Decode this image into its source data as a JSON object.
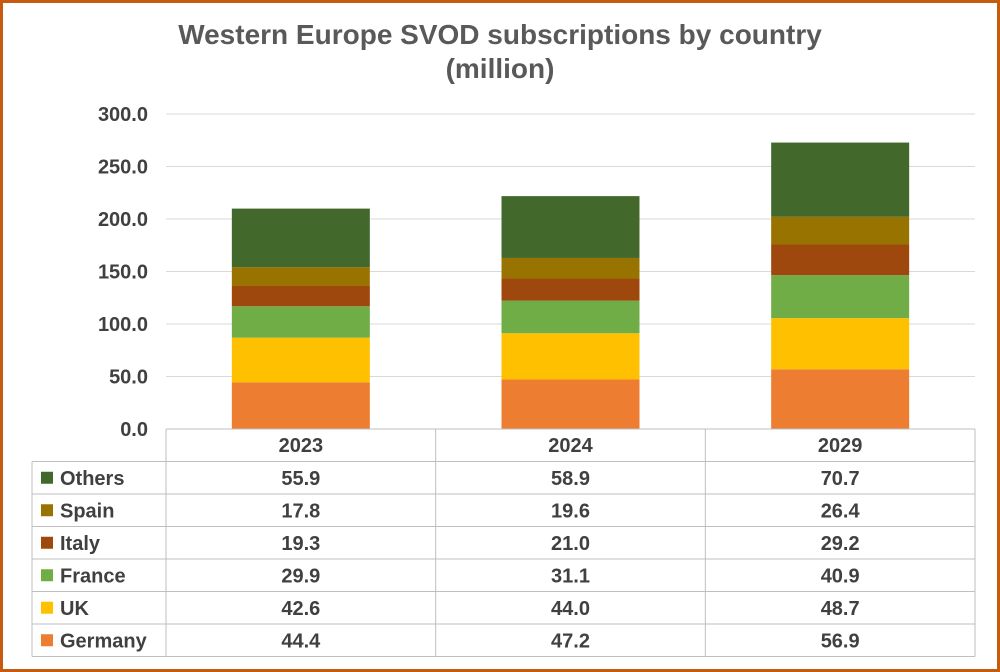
{
  "chart_data": {
    "type": "bar",
    "stacked": true,
    "title_line1": "Western Europe SVOD subscriptions by country",
    "title_line2": "(million)",
    "categories": [
      "2023",
      "2024",
      "2029"
    ],
    "ylim": [
      0,
      300
    ],
    "yticks": [
      "0.0",
      "50.0",
      "100.0",
      "150.0",
      "200.0",
      "250.0",
      "300.0"
    ],
    "grid": true,
    "legend": "data-table",
    "series": [
      {
        "name": "Germany",
        "color": "#ed7d31",
        "values": [
          44.4,
          47.2,
          56.9
        ],
        "labels": [
          "44.4",
          "47.2",
          "56.9"
        ]
      },
      {
        "name": "UK",
        "color": "#ffc000",
        "values": [
          42.6,
          44.0,
          48.7
        ],
        "labels": [
          "42.6",
          "44.0",
          "48.7"
        ]
      },
      {
        "name": "France",
        "color": "#70ad47",
        "values": [
          29.9,
          31.1,
          40.9
        ],
        "labels": [
          "29.9",
          "31.1",
          "40.9"
        ]
      },
      {
        "name": "Italy",
        "color": "#9e480e",
        "values": [
          19.3,
          21.0,
          29.2
        ],
        "labels": [
          "19.3",
          "21.0",
          "29.2"
        ]
      },
      {
        "name": "Spain",
        "color": "#997300",
        "values": [
          17.8,
          19.6,
          26.4
        ],
        "labels": [
          "17.8",
          "19.6",
          "26.4"
        ]
      },
      {
        "name": "Others",
        "color": "#43682b",
        "values": [
          55.9,
          58.9,
          70.7
        ],
        "labels": [
          "55.9",
          "58.9",
          "70.7"
        ]
      }
    ]
  }
}
